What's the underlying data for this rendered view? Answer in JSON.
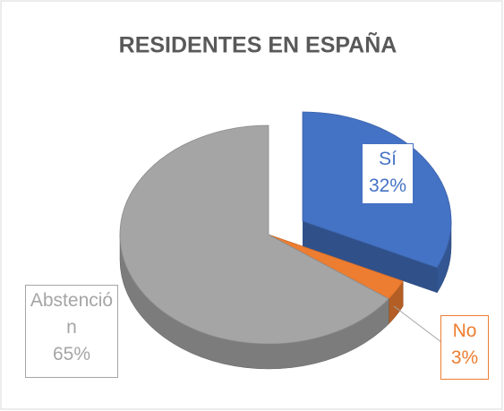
{
  "chart_data": {
    "type": "pie3d",
    "title": "RESIDENTES EN ESPAÑA",
    "categories": [
      "Sí",
      "No",
      "Abstención"
    ],
    "values": [
      32,
      3,
      65
    ],
    "value_labels": [
      "32%",
      "3%",
      "65%"
    ],
    "colors": [
      "#4472c4",
      "#ed7d31",
      "#a5a5a5"
    ]
  }
}
